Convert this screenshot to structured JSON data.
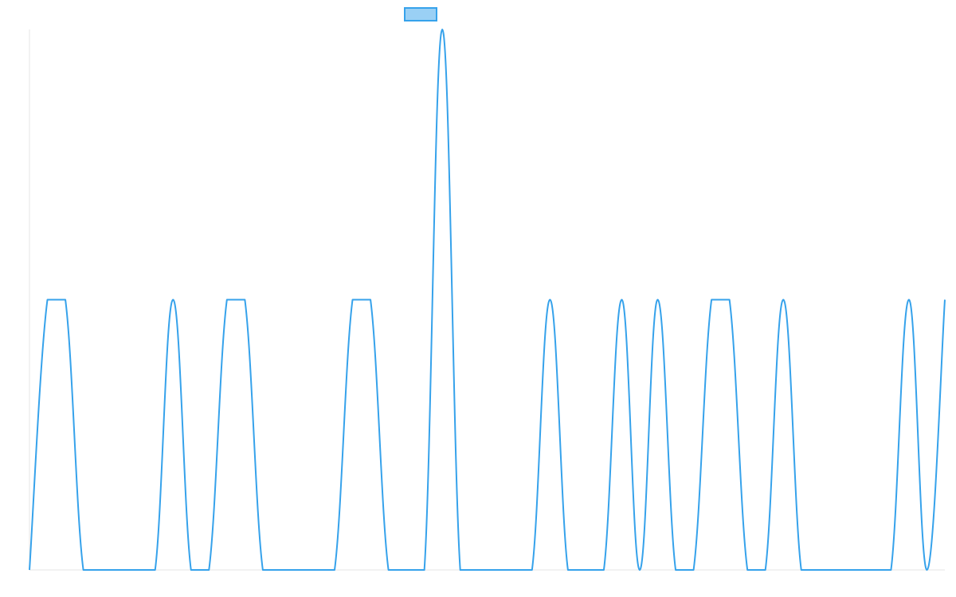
{
  "chart_data": {
    "type": "line",
    "title": "",
    "xlabel": "",
    "ylabel": "",
    "grid": false,
    "legend_position": "top-center",
    "x": [
      0,
      1,
      2,
      3,
      4,
      5,
      6,
      7,
      8,
      9,
      10,
      11,
      12,
      13,
      14,
      15,
      16,
      17,
      18,
      19,
      20,
      21,
      22,
      23,
      24,
      25,
      26,
      27,
      28,
      29,
      30,
      31,
      32,
      33,
      34,
      35,
      36,
      37,
      38,
      39,
      40,
      41,
      42,
      43,
      44,
      45,
      46,
      47,
      48,
      49,
      50,
      51
    ],
    "ylim": [
      0,
      2
    ],
    "series": [
      {
        "name": "",
        "color": "#36a2eb",
        "fill": "#9ad0f5",
        "values": [
          0,
          1,
          1,
          0,
          0,
          0,
          0,
          0,
          1,
          0,
          0,
          1,
          1,
          0,
          0,
          0,
          0,
          0,
          1,
          1,
          0,
          0,
          0,
          2,
          0,
          0,
          0,
          0,
          0,
          1,
          0,
          0,
          0,
          1,
          0,
          1,
          0,
          0,
          1,
          1,
          0,
          0,
          1,
          0,
          0,
          0,
          0,
          0,
          0,
          1,
          0,
          1
        ]
      }
    ]
  }
}
